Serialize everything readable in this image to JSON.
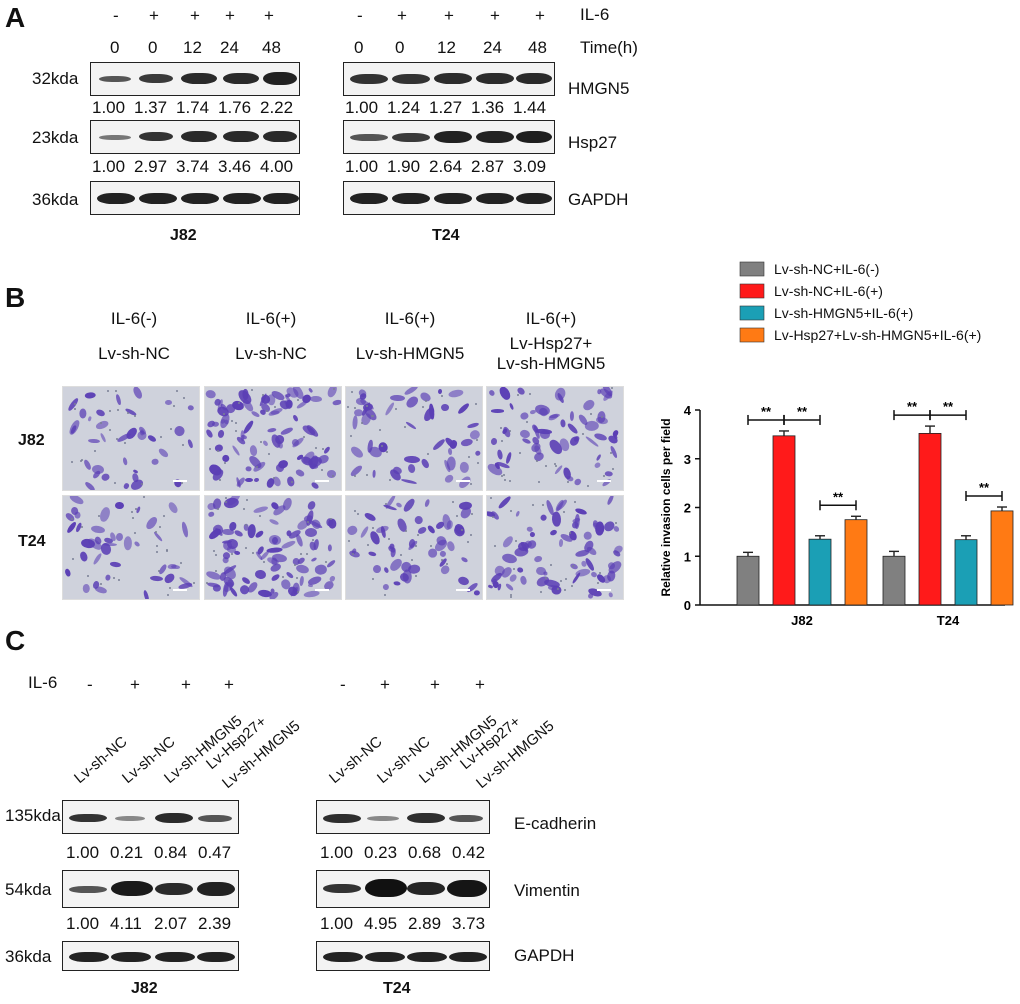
{
  "panel_labels": {
    "a": "A",
    "b": "B",
    "c": "C"
  },
  "panelA": {
    "il6_label": "IL-6",
    "time_label": "Time(h)",
    "il6_signs": [
      "-",
      "+",
      "+",
      "+",
      "+"
    ],
    "times": [
      "0",
      "0",
      "12",
      "24",
      "48"
    ],
    "left_cell": "J82",
    "right_cell": "T24",
    "sizes": {
      "hmgn5": "32kda",
      "hsp27": "23kda",
      "gapdh": "36kda"
    },
    "protein_names": {
      "hmgn5": "HMGN5",
      "hsp27": "Hsp27",
      "gapdh": "GAPDH"
    },
    "quant": {
      "j82_hmgn5": [
        "1.00",
        "1.37",
        "1.74",
        "1.76",
        "2.22"
      ],
      "j82_hsp27": [
        "1.00",
        "2.97",
        "3.74",
        "3.46",
        "4.00"
      ],
      "t24_hmgn5": [
        "1.00",
        "1.24",
        "1.27",
        "1.36",
        "1.44"
      ],
      "t24_hsp27": [
        "1.00",
        "1.90",
        "2.64",
        "2.87",
        "3.09"
      ]
    }
  },
  "panelB": {
    "col_headers": [
      {
        "il6": "IL-6(-)",
        "group": "Lv-sh-NC"
      },
      {
        "il6": "IL-6(+)",
        "group": "Lv-sh-NC"
      },
      {
        "il6": "IL-6(+)",
        "group": "Lv-sh-HMGN5"
      },
      {
        "il6": "IL-6(+)",
        "group1": "Lv-Hsp27+",
        "group2": "Lv-sh-HMGN5"
      }
    ],
    "row_labels": [
      "J82",
      "T24"
    ],
    "stain_color": "#5b3fb5"
  },
  "panelC": {
    "il6_label": "IL-6",
    "il6_signs": [
      "-",
      "+",
      "+",
      "+"
    ],
    "lane_labels": [
      "Lv-sh-NC",
      "Lv-sh-NC",
      "Lv-sh-HMGN5",
      "Lv-Hsp27+",
      "Lv-sh-HMGN5"
    ],
    "left_cell": "J82",
    "right_cell": "T24",
    "sizes": {
      "ecad": "135kda",
      "vim": "54kda",
      "gapdh": "36kda"
    },
    "protein_names": {
      "ecad": "E-cadherin",
      "vim": "Vimentin",
      "gapdh": "GAPDH"
    },
    "quant": {
      "j82_ecad": [
        "1.00",
        "0.21",
        "0.84",
        "0.47"
      ],
      "j82_vim": [
        "1.00",
        "4.11",
        "2.07",
        "2.39"
      ],
      "t24_ecad": [
        "1.00",
        "0.23",
        "0.68",
        "0.42"
      ],
      "t24_vim": [
        "1.00",
        "4.95",
        "2.89",
        "3.73"
      ]
    }
  },
  "chart_data": {
    "type": "bar",
    "title": "",
    "xlabel": "",
    "ylabel": "Relative invasion cells per field",
    "ylim": [
      0,
      4
    ],
    "yticks": [
      "0",
      "1",
      "2",
      "3",
      "4"
    ],
    "categories": [
      "J82",
      "T24"
    ],
    "legend_position": "top",
    "significance_label": "**",
    "series": [
      {
        "name": "Lv-sh-NC+IL-6(-)",
        "color": "#808080",
        "values": [
          1.0,
          1.0
        ],
        "errors": [
          0.08,
          0.1
        ]
      },
      {
        "name": "Lv-sh-NC+IL-6(+)",
        "color": "#ff1a1a",
        "values": [
          3.47,
          3.52
        ],
        "errors": [
          0.1,
          0.15
        ]
      },
      {
        "name": "Lv-sh-HMGN5+IL-6(+)",
        "color": "#1b9fb5",
        "values": [
          1.35,
          1.34
        ],
        "errors": [
          0.07,
          0.08
        ]
      },
      {
        "name": "Lv-Hsp27+Lv-sh-HMGN5+IL-6(+)",
        "color": "#ff7a14",
        "values": [
          1.75,
          1.93
        ],
        "errors": [
          0.07,
          0.08
        ]
      }
    ],
    "comparisons": [
      [
        0,
        1
      ],
      [
        1,
        2
      ],
      [
        2,
        3
      ]
    ]
  }
}
